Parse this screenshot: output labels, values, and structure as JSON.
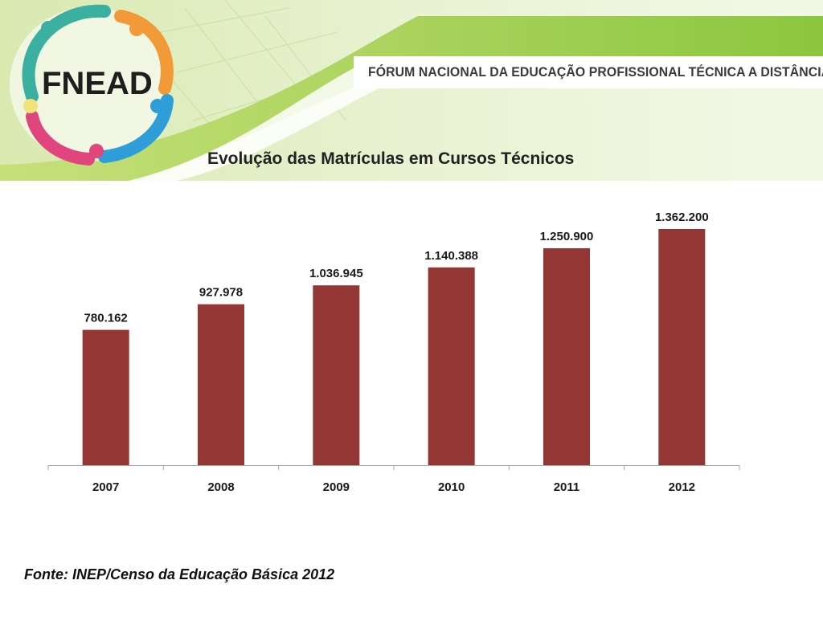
{
  "header": {
    "logo_text": "FNEAD",
    "organization": "FÓRUM NACIONAL DA EDUCAÇÃO PROFISSIONAL TÉCNICA A DISTÂNCIA"
  },
  "colors": {
    "bar": "#943634",
    "accent_green": "#9cc83c",
    "logo_teal": "#3bb0a0",
    "logo_orange": "#f29a38",
    "logo_blue": "#2f9ed8",
    "logo_pink": "#e0457e"
  },
  "chart_data": {
    "type": "bar",
    "title": "Evolução das Matrículas em Cursos Técnicos",
    "categories": [
      "2007",
      "2008",
      "2009",
      "2010",
      "2011",
      "2012"
    ],
    "values": [
      780162,
      927978,
      1036945,
      1140388,
      1250900,
      1362200
    ],
    "value_labels": [
      "780.162",
      "927.978",
      "1.036.945",
      "1.140.388",
      "1.250.900",
      "1.362.200"
    ],
    "xlabel": "",
    "ylabel": "",
    "ylim": [
      0,
      1362200
    ],
    "grid": false,
    "legend": "none"
  },
  "footer": {
    "source": "Fonte: INEP/Censo da Educação Básica 2012"
  }
}
